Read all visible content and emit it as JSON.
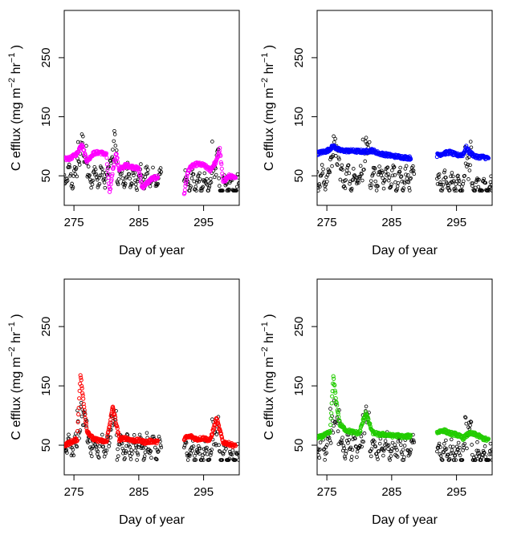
{
  "panel_xlabel": "Day of year",
  "panel_ylabel": {
    "main": "C efflux (mg  m",
    "sup1": "−2",
    "mid": " hr",
    "sup2": "−1",
    "end": " )"
  },
  "chart_data": [
    {
      "type": "scatter",
      "xlabel": "Day of year",
      "ylabel": "C efflux (mg  m−2 hr−1 )",
      "xlim": [
        273.5,
        300.5
      ],
      "ylim": [
        0,
        330
      ],
      "xticks": [
        275,
        285,
        295
      ],
      "yticks": [
        50,
        150,
        250
      ],
      "grid": false,
      "series": [
        {
          "color": "#000000",
          "marker": "open-circle",
          "spans": [
            [
              273.5,
              288.5
            ],
            [
              292,
              300.5
            ]
          ],
          "values_range": [
            30,
            120
          ]
        },
        {
          "color": "#ff00ff",
          "marker": "open-circle",
          "points": [
            [
              273.5,
              78
            ],
            [
              274.5,
              80
            ],
            [
              275.5,
              88
            ],
            [
              276.2,
              105
            ],
            [
              277,
              75
            ],
            [
              278,
              88
            ],
            [
              279,
              90
            ],
            [
              280,
              86
            ],
            [
              280.5,
              20
            ],
            [
              281,
              60
            ],
            [
              281.5,
              88
            ],
            [
              282,
              60
            ],
            [
              283,
              68
            ],
            [
              284,
              65
            ],
            [
              285,
              62
            ],
            [
              285.5,
              30
            ],
            [
              286,
              35
            ],
            [
              287,
              45
            ],
            [
              288,
              48
            ],
            [
              292,
              18
            ],
            [
              292.5,
              55
            ],
            [
              293,
              65
            ],
            [
              294,
              70
            ],
            [
              295,
              68
            ],
            [
              296,
              60
            ],
            [
              297,
              75
            ],
            [
              297.5,
              95
            ],
            [
              298,
              40
            ],
            [
              299,
              50
            ],
            [
              300,
              45
            ]
          ]
        }
      ]
    },
    {
      "type": "scatter",
      "xlabel": "Day of year",
      "ylabel": "C efflux (mg  m−2 hr−1 )",
      "xlim": [
        273.5,
        300.5
      ],
      "ylim": [
        0,
        330
      ],
      "xticks": [
        275,
        285,
        295
      ],
      "yticks": [
        50,
        150,
        250
      ],
      "grid": false,
      "series": [
        {
          "color": "#000000",
          "marker": "open-circle",
          "spans": [
            [
              273.5,
              288.5
            ],
            [
              292,
              300.5
            ]
          ],
          "values_range": [
            30,
            120
          ]
        },
        {
          "color": "#0000ff",
          "marker": "open-circle",
          "points": [
            [
              273.5,
              88
            ],
            [
              275,
              92
            ],
            [
              276,
              100
            ],
            [
              277,
              93
            ],
            [
              279,
              92
            ],
            [
              281,
              91
            ],
            [
              282,
              93
            ],
            [
              283,
              88
            ],
            [
              285,
              84
            ],
            [
              287,
              81
            ],
            [
              288,
              80
            ],
            [
              292,
              85
            ],
            [
              293,
              88
            ],
            [
              294,
              90
            ],
            [
              295,
              85
            ],
            [
              296,
              86
            ],
            [
              296.5,
              98
            ],
            [
              297,
              90
            ],
            [
              298,
              82
            ],
            [
              299,
              82
            ],
            [
              300,
              80
            ]
          ]
        }
      ]
    },
    {
      "type": "scatter",
      "xlabel": "Day of year",
      "ylabel": "C efflux (mg  m−2 hr−1 )",
      "xlim": [
        273.5,
        300.5
      ],
      "ylim": [
        0,
        330
      ],
      "xticks": [
        275,
        285,
        295
      ],
      "yticks": [
        50,
        150,
        250
      ],
      "grid": false,
      "series": [
        {
          "color": "#000000",
          "marker": "open-circle",
          "spans": [
            [
              273.5,
              288.5
            ],
            [
              292,
              300.5
            ]
          ],
          "values_range": [
            30,
            120
          ]
        },
        {
          "color": "#ff0000",
          "marker": "open-circle",
          "points": [
            [
              273.5,
              50
            ],
            [
              274.5,
              55
            ],
            [
              275.5,
              60
            ],
            [
              276,
              170
            ],
            [
              276.5,
              120
            ],
            [
              277,
              75
            ],
            [
              278,
              60
            ],
            [
              279,
              58
            ],
            [
              280,
              55
            ],
            [
              281,
              115
            ],
            [
              282,
              60
            ],
            [
              283,
              62
            ],
            [
              284,
              58
            ],
            [
              285,
              58
            ],
            [
              286,
              55
            ],
            [
              287,
              57
            ],
            [
              288,
              55
            ],
            [
              292,
              62
            ],
            [
              293,
              65
            ],
            [
              294,
              60
            ],
            [
              295,
              62
            ],
            [
              296,
              58
            ],
            [
              297,
              95
            ],
            [
              298,
              55
            ],
            [
              299,
              52
            ],
            [
              300,
              48
            ]
          ]
        }
      ]
    },
    {
      "type": "scatter",
      "xlabel": "Day of year",
      "ylabel": "C efflux (mg  m−2 hr−1 )",
      "xlim": [
        273.5,
        300.5
      ],
      "ylim": [
        0,
        330
      ],
      "xticks": [
        275,
        285,
        295
      ],
      "yticks": [
        50,
        150,
        250
      ],
      "grid": false,
      "series": [
        {
          "color": "#000000",
          "marker": "open-circle",
          "spans": [
            [
              273.5,
              288.5
            ],
            [
              292,
              300.5
            ]
          ],
          "values_range": [
            30,
            120
          ]
        },
        {
          "color": "#22cc00",
          "marker": "open-circle",
          "points": [
            [
              273.5,
              62
            ],
            [
              274.5,
              66
            ],
            [
              275.5,
              72
            ],
            [
              276,
              165
            ],
            [
              276.5,
              120
            ],
            [
              277,
              85
            ],
            [
              278,
              75
            ],
            [
              279,
              72
            ],
            [
              280,
              70
            ],
            [
              281,
              105
            ],
            [
              282,
              72
            ],
            [
              283,
              68
            ],
            [
              284,
              68
            ],
            [
              285,
              66
            ],
            [
              286,
              66
            ],
            [
              287,
              64
            ],
            [
              288,
              66
            ],
            [
              292,
              72
            ],
            [
              293,
              75
            ],
            [
              294,
              70
            ],
            [
              295,
              68
            ],
            [
              296,
              62
            ],
            [
              297,
              70
            ],
            [
              298,
              68
            ],
            [
              299,
              62
            ],
            [
              300,
              58
            ]
          ]
        }
      ]
    }
  ]
}
